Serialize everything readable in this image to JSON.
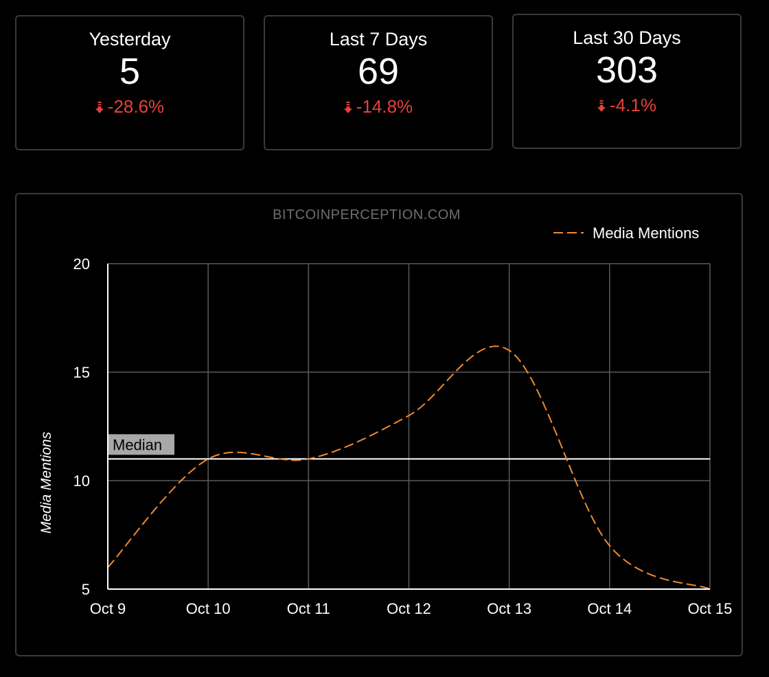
{
  "stats": [
    {
      "title": "Yesterday",
      "value": "5",
      "delta": "-28.6%",
      "trend_icon": "arrow-down-icon"
    },
    {
      "title": "Last 7 Days",
      "value": "69",
      "delta": "-14.8%",
      "trend_icon": "arrow-down-icon"
    },
    {
      "title": "Last 30 Days",
      "value": "303",
      "delta": "-4.1%",
      "trend_icon": "arrow-down-icon"
    }
  ],
  "colors": {
    "background": "#000000",
    "card_border": "#3a3a3a",
    "negative": "#e8403a",
    "series": "#f28a30",
    "grid": "#5a5a5a",
    "median_line": "#ffffff",
    "watermark": "#6e6e6e"
  },
  "chart_data": {
    "type": "line",
    "title": "BITCOINPERCEPTION.COM",
    "xlabel": "",
    "ylabel": "Media Mentions",
    "categories": [
      "Oct 9",
      "Oct 10",
      "Oct 11",
      "Oct 12",
      "Oct 13",
      "Oct 14",
      "Oct 15"
    ],
    "series": [
      {
        "name": "Media Mentions",
        "values": [
          6,
          11,
          11,
          13,
          16,
          7,
          5
        ],
        "style": "dashed"
      }
    ],
    "ylim": [
      5,
      20
    ],
    "yticks": [
      5,
      10,
      15,
      20
    ],
    "median": {
      "label": "Median",
      "value": 11
    },
    "grid": true,
    "legend_position": "top-right"
  }
}
